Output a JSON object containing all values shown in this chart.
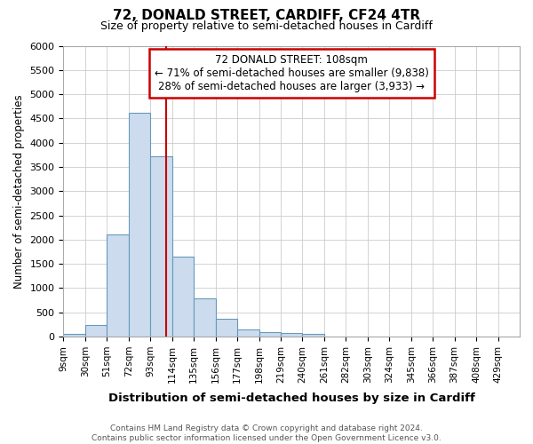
{
  "title_line1": "72, DONALD STREET, CARDIFF, CF24 4TR",
  "title_line2": "Size of property relative to semi-detached houses in Cardiff",
  "xlabel": "Distribution of semi-detached houses by size in Cardiff",
  "ylabel": "Number of semi-detached properties",
  "footnote": "Contains HM Land Registry data © Crown copyright and database right 2024.\nContains public sector information licensed under the Open Government Licence v3.0.",
  "bin_labels": [
    "9sqm",
    "30sqm",
    "51sqm",
    "72sqm",
    "93sqm",
    "114sqm",
    "135sqm",
    "156sqm",
    "177sqm",
    "198sqm",
    "219sqm",
    "240sqm",
    "261sqm",
    "282sqm",
    "303sqm",
    "324sqm",
    "345sqm",
    "366sqm",
    "387sqm",
    "408sqm",
    "429sqm"
  ],
  "bin_edges": [
    9,
    30,
    51,
    72,
    93,
    114,
    135,
    156,
    177,
    198,
    219,
    240,
    261,
    282,
    303,
    324,
    345,
    366,
    387,
    408,
    429
  ],
  "bar_heights": [
    50,
    230,
    2100,
    4620,
    3720,
    1650,
    790,
    370,
    155,
    100,
    80,
    55,
    5,
    3,
    2,
    2,
    0,
    0,
    0,
    0,
    0
  ],
  "bar_color": "#ccdcee",
  "bar_edge_color": "#6699bb",
  "property_size": 108,
  "vline_color": "#cc0000",
  "annotation_text": "72 DONALD STREET: 108sqm\n← 71% of semi-detached houses are smaller (9,838)\n28% of semi-detached houses are larger (3,933) →",
  "annotation_box_color": "#ffffff",
  "annotation_box_edge": "#cc0000",
  "ylim": [
    0,
    6000
  ],
  "yticks": [
    0,
    500,
    1000,
    1500,
    2000,
    2500,
    3000,
    3500,
    4000,
    4500,
    5000,
    5500,
    6000
  ],
  "grid_color": "#cccccc",
  "bg_color": "#ffffff",
  "plot_bg_color": "#ffffff"
}
